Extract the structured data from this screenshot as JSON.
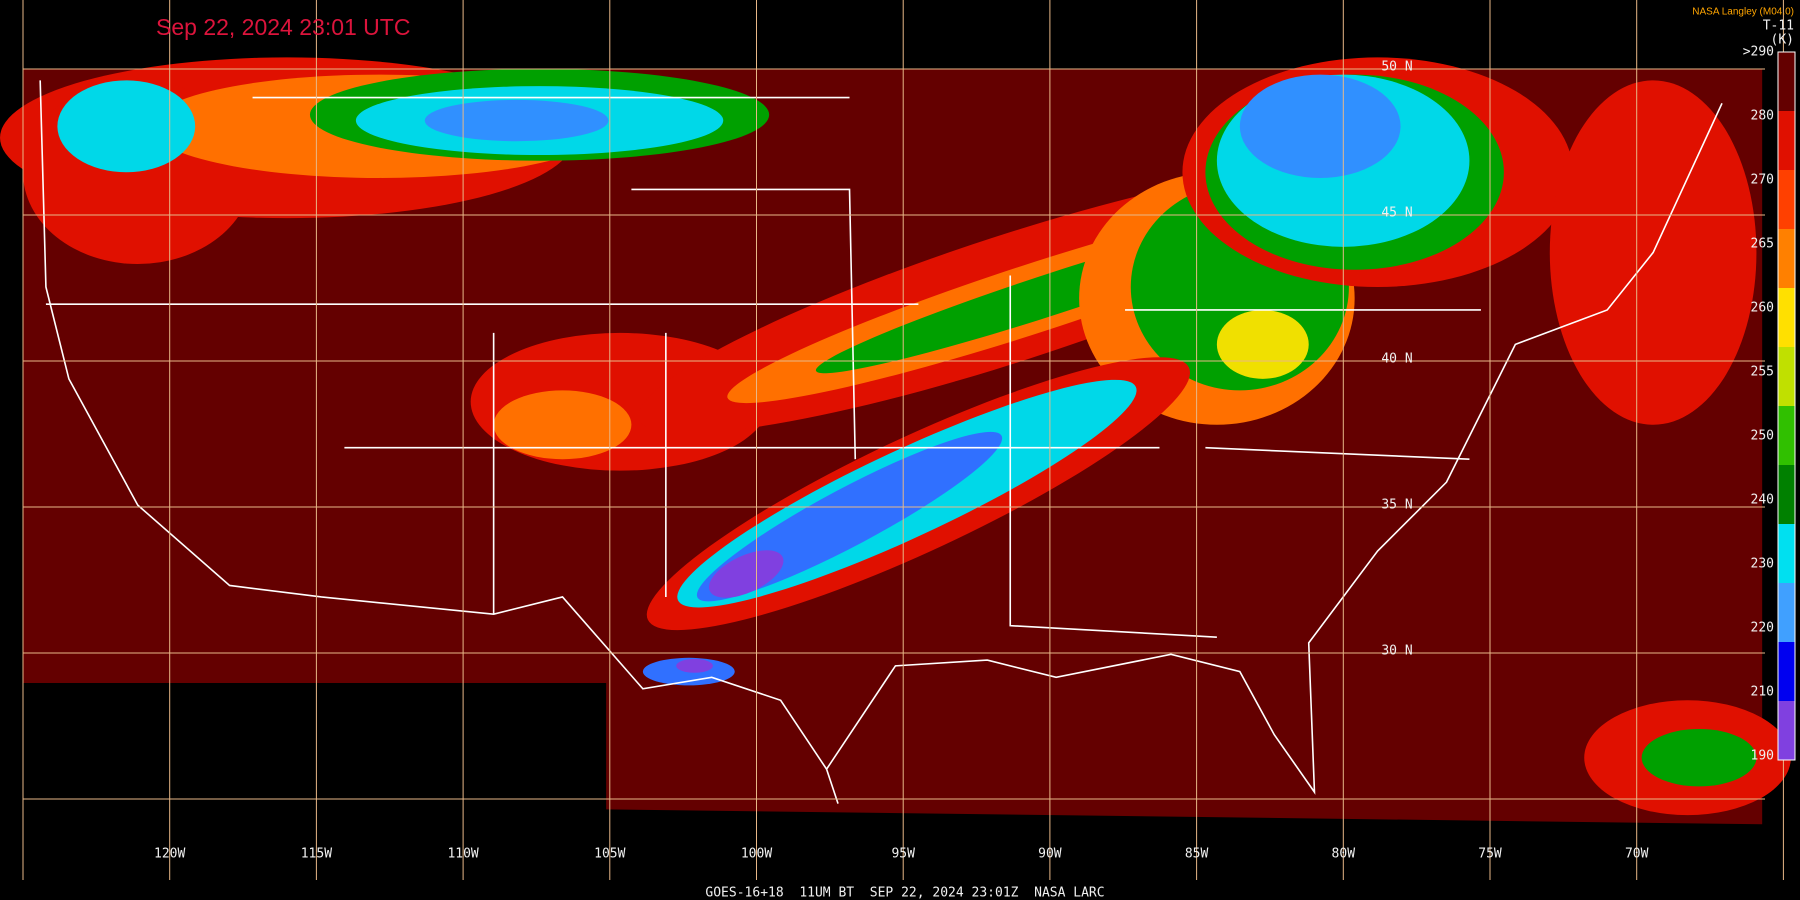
{
  "header": {
    "title": "Sep 22, 2024 23:01 UTC",
    "source": "NASA Langley (M04.0)",
    "channel": "T-11",
    "unit": "(K)"
  },
  "map": {
    "longitude_labels": [
      "120W",
      "115W",
      "110W",
      "105W",
      "100W",
      "95W",
      "90W",
      "85W",
      "80W",
      "75W",
      "70W"
    ],
    "latitude_labels": [
      "50 N",
      "45 N",
      "40 N",
      "35 N",
      "30 N"
    ]
  },
  "colorbar": {
    "labels": [
      ">290",
      "280",
      "270",
      "265",
      "260",
      "255",
      "250",
      "240",
      "230",
      "220",
      "210",
      "190"
    ]
  },
  "footer": "GOES-16+18  11UM BT  SEP 22, 2024 23:01Z  NASA LARC"
}
